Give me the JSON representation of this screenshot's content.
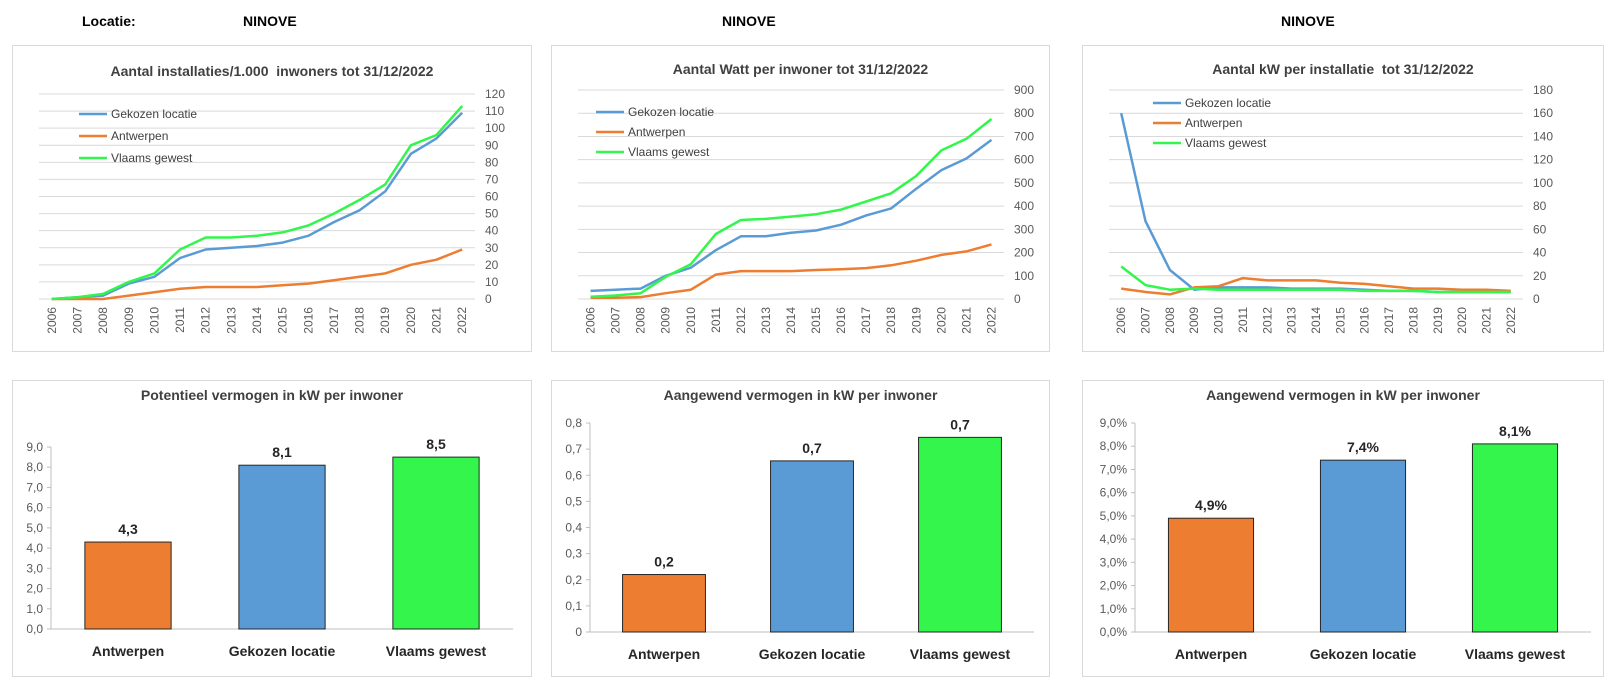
{
  "header": {
    "location_label": "Locatie:",
    "location_value": "NINOVE",
    "title_middle": "NINOVE",
    "title_right": "NINOVE"
  },
  "colors": {
    "gekozen": "#5b9bd5",
    "antwerpen": "#ed7d31",
    "vlaams": "#33f54c"
  },
  "chart_data": [
    {
      "type": "line",
      "title": "Aantal installaties/1.000  inwoners tot 31/12/2022",
      "x": [
        "2006",
        "2007",
        "2008",
        "2009",
        "2010",
        "2011",
        "2012",
        "2013",
        "2014",
        "2015",
        "2016",
        "2017",
        "2018",
        "2019",
        "2020",
        "2021",
        "2022"
      ],
      "ylim": [
        0,
        120
      ],
      "yticks": [
        0,
        10,
        20,
        30,
        40,
        50,
        60,
        70,
        80,
        90,
        100,
        110,
        120
      ],
      "yaxis_side": "right",
      "grid": true,
      "legend_position": "top-left",
      "series": [
        {
          "name": "Gekozen locatie",
          "color": "#5b9bd5",
          "values": [
            0,
            1,
            2,
            9,
            13,
            24,
            29,
            30,
            31,
            33,
            37,
            45,
            52,
            63,
            85,
            94,
            109
          ]
        },
        {
          "name": "Antwerpen",
          "color": "#ed7d31",
          "values": [
            0,
            0,
            0,
            2,
            4,
            6,
            7,
            7,
            7,
            8,
            9,
            11,
            13,
            15,
            20,
            23,
            29
          ]
        },
        {
          "name": "Vlaams gewest",
          "color": "#33f54c",
          "values": [
            0,
            1,
            3,
            10,
            15,
            29,
            36,
            36,
            37,
            39,
            43,
            50,
            58,
            67,
            90,
            96,
            113
          ]
        }
      ]
    },
    {
      "type": "line",
      "title": "Aantal Watt per inwoner tot 31/12/2022",
      "x": [
        "2006",
        "2007",
        "2008",
        "2009",
        "2010",
        "2011",
        "2012",
        "2013",
        "2014",
        "2015",
        "2016",
        "2017",
        "2018",
        "2019",
        "2020",
        "2021",
        "2022"
      ],
      "ylim": [
        0,
        900
      ],
      "yticks": [
        0,
        100,
        200,
        300,
        400,
        500,
        600,
        700,
        800,
        900
      ],
      "yaxis_side": "right",
      "grid": true,
      "legend_position": "top-left",
      "series": [
        {
          "name": "Gekozen locatie",
          "color": "#5b9bd5",
          "values": [
            35,
            40,
            45,
            100,
            135,
            210,
            270,
            270,
            285,
            295,
            320,
            360,
            390,
            475,
            555,
            605,
            685
          ]
        },
        {
          "name": "Antwerpen",
          "color": "#ed7d31",
          "values": [
            5,
            5,
            8,
            25,
            40,
            105,
            120,
            120,
            120,
            125,
            128,
            133,
            145,
            165,
            190,
            205,
            235
          ]
        },
        {
          "name": "Vlaams gewest",
          "color": "#33f54c",
          "values": [
            10,
            15,
            25,
            95,
            150,
            280,
            340,
            345,
            355,
            365,
            385,
            420,
            455,
            530,
            640,
            690,
            775
          ]
        }
      ]
    },
    {
      "type": "line",
      "title": "Aantal kW per installatie  tot 31/12/2022",
      "x": [
        "2006",
        "2007",
        "2008",
        "2009",
        "2010",
        "2011",
        "2012",
        "2013",
        "2014",
        "2015",
        "2016",
        "2017",
        "2018",
        "2019",
        "2020",
        "2021",
        "2022"
      ],
      "ylim": [
        0,
        180
      ],
      "yticks": [
        0,
        20,
        40,
        60,
        80,
        100,
        120,
        140,
        160,
        180
      ],
      "yaxis_side": "right",
      "grid": true,
      "legend_position": "top-left",
      "series": [
        {
          "name": "Gekozen locatie",
          "color": "#5b9bd5",
          "values": [
            160,
            67,
            25,
            8,
            10,
            10,
            10,
            9,
            9,
            9,
            8,
            7,
            7,
            6,
            6,
            6,
            6
          ]
        },
        {
          "name": "Antwerpen",
          "color": "#ed7d31",
          "values": [
            9,
            6,
            4,
            10,
            11,
            18,
            16,
            16,
            16,
            14,
            13,
            11,
            9,
            9,
            8,
            8,
            7
          ]
        },
        {
          "name": "Vlaams gewest",
          "color": "#33f54c",
          "values": [
            28,
            12,
            8,
            9,
            8,
            8,
            8,
            8,
            8,
            8,
            7,
            7,
            7,
            6,
            6,
            6,
            6
          ]
        }
      ]
    },
    {
      "type": "bar",
      "title": "Potentieel vermogen in kW per inwoner",
      "categories": [
        "Antwerpen",
        "Gekozen locatie",
        "Vlaams gewest"
      ],
      "values": [
        4.3,
        8.1,
        8.5
      ],
      "labels": [
        "4,3",
        "8,1",
        "8,5"
      ],
      "colors": [
        "#ed7d31",
        "#5b9bd5",
        "#33f54c"
      ],
      "ylim": [
        0,
        9
      ],
      "yticks": [
        "0,0",
        "1,0",
        "2,0",
        "3,0",
        "4,0",
        "5,0",
        "6,0",
        "7,0",
        "8,0",
        "9,0"
      ],
      "grid": false
    },
    {
      "type": "bar",
      "title": "Aangewend vermogen in kW per inwoner",
      "categories": [
        "Antwerpen",
        "Gekozen locatie",
        "Vlaams gewest"
      ],
      "values": [
        0.22,
        0.655,
        0.745
      ],
      "labels": [
        "0,2",
        "0,7",
        "0,7"
      ],
      "colors": [
        "#ed7d31",
        "#5b9bd5",
        "#33f54c"
      ],
      "ylim": [
        0,
        0.8
      ],
      "yticks": [
        "0",
        "0,1",
        "0,2",
        "0,3",
        "0,4",
        "0,5",
        "0,6",
        "0,7",
        "0,8"
      ],
      "grid": false
    },
    {
      "type": "bar",
      "title": "Aangewend vermogen in kW per inwoner",
      "categories": [
        "Antwerpen",
        "Gekozen locatie",
        "Vlaams gewest"
      ],
      "values": [
        4.9,
        7.4,
        8.1
      ],
      "labels": [
        "4,9%",
        "7,4%",
        "8,1%"
      ],
      "colors": [
        "#ed7d31",
        "#5b9bd5",
        "#33f54c"
      ],
      "ylim": [
        0,
        9
      ],
      "yticks": [
        "0,0%",
        "1,0%",
        "2,0%",
        "3,0%",
        "4,0%",
        "5,0%",
        "6,0%",
        "7,0%",
        "8,0%",
        "9,0%"
      ],
      "grid": false
    }
  ]
}
